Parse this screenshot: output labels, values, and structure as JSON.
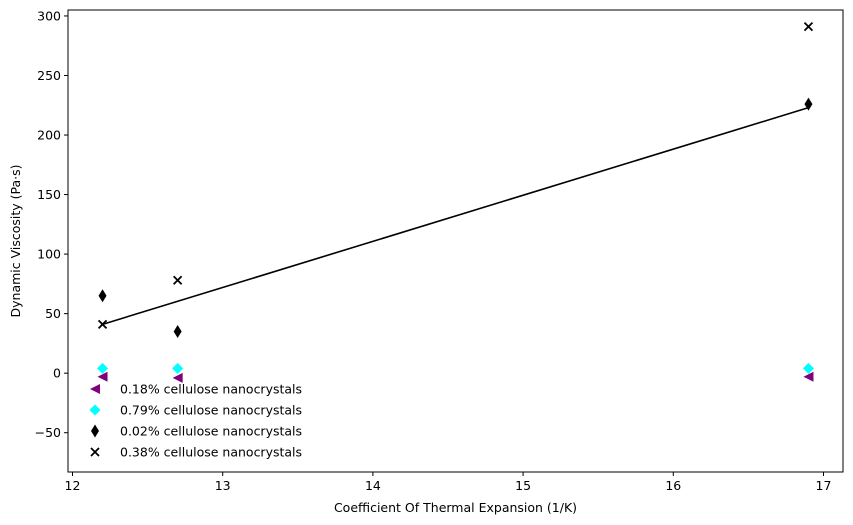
{
  "chart_data": {
    "type": "scatter",
    "title": "",
    "xlabel": "Coefficient Of Thermal Expansion (1/K)",
    "ylabel": "Dynamic Viscosity (Pa·s)",
    "xlim": [
      11.97,
      17.13
    ],
    "ylim": [
      -83,
      305
    ],
    "xticks": [
      12,
      13,
      14,
      15,
      16,
      17
    ],
    "yticks": [
      -50,
      0,
      50,
      100,
      150,
      200,
      250,
      300
    ],
    "grid": false,
    "legend_position": "lower-left",
    "series": [
      {
        "name": "0.18% cellulose nanocrystals",
        "marker": "triangle-left",
        "color": "#800080",
        "x": [
          12.2,
          12.7,
          16.9
        ],
        "y": [
          -3,
          -4,
          -3
        ]
      },
      {
        "name": "0.79% cellulose nanocrystals",
        "marker": "diamond",
        "color": "#00ffff",
        "x": [
          12.2,
          12.7,
          16.9
        ],
        "y": [
          4,
          4,
          4
        ]
      },
      {
        "name": "0.02% cellulose nanocrystals",
        "marker": "thin-diamond",
        "color": "#000000",
        "x": [
          12.2,
          12.7,
          16.9
        ],
        "y": [
          65,
          35,
          226
        ]
      },
      {
        "name": "0.38% cellulose nanocrystals",
        "marker": "x",
        "color": "#000000",
        "x": [
          12.2,
          12.7,
          16.9
        ],
        "y": [
          41,
          78,
          291
        ]
      }
    ],
    "fit_line": {
      "color": "#000000",
      "x": [
        12.2,
        16.9
      ],
      "y": [
        41,
        223
      ]
    }
  }
}
